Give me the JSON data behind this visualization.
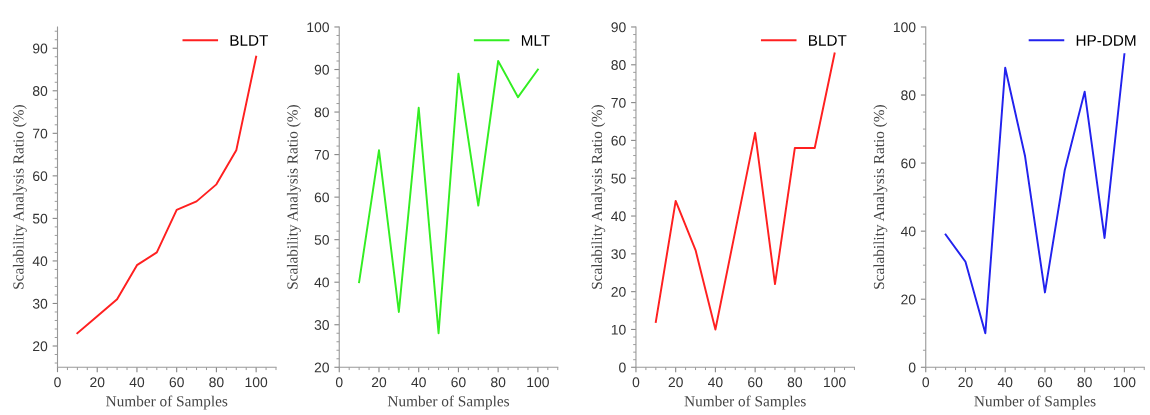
{
  "chart_data": [
    {
      "type": "line",
      "xlabel": "Number of Samples",
      "ylabel": "Scalability Analysis Ratio (%)",
      "x": [
        10,
        20,
        30,
        40,
        50,
        60,
        70,
        80,
        90,
        100
      ],
      "xlim": [
        0,
        110
      ],
      "xticks": [
        0,
        20,
        40,
        60,
        80,
        100
      ],
      "ylim": [
        15,
        95
      ],
      "yticks": [
        20,
        30,
        40,
        50,
        60,
        70,
        80,
        90
      ],
      "legend": "top right",
      "grid": false,
      "marker": "none",
      "line_style": "solid",
      "series": [
        {
          "name": "BLDT",
          "color": "#ff2020",
          "values": [
            23,
            27,
            31,
            39,
            42,
            52,
            54,
            58,
            66,
            88
          ]
        }
      ]
    },
    {
      "type": "line",
      "xlabel": "Number of Samples",
      "ylabel": "Scalability Analysis Ratio (%)",
      "x": [
        10,
        20,
        30,
        40,
        50,
        60,
        70,
        80,
        90,
        100
      ],
      "xlim": [
        0,
        110
      ],
      "xticks": [
        0,
        20,
        40,
        60,
        80,
        100
      ],
      "ylim": [
        20,
        100
      ],
      "yticks": [
        20,
        30,
        40,
        50,
        60,
        70,
        80,
        90,
        100
      ],
      "legend": "top right",
      "grid": false,
      "marker": "none",
      "line_style": "solid",
      "series": [
        {
          "name": "MLT",
          "color": "#33ee22",
          "values": [
            40,
            71,
            33,
            81,
            28,
            89,
            58,
            92,
            83.5,
            90
          ]
        }
      ]
    },
    {
      "type": "line",
      "xlabel": "Number of Samples",
      "ylabel": "Scalability Analysis Ratio (%)",
      "x": [
        10,
        20,
        30,
        40,
        50,
        60,
        70,
        80,
        90,
        100
      ],
      "xlim": [
        0,
        110
      ],
      "xticks": [
        0,
        20,
        40,
        60,
        80,
        100
      ],
      "ylim": [
        0,
        90
      ],
      "yticks": [
        0,
        10,
        20,
        30,
        40,
        50,
        60,
        70,
        80,
        90
      ],
      "legend": "top right",
      "grid": false,
      "marker": "none",
      "line_style": "solid",
      "series": [
        {
          "name": "BLDT",
          "color": "#ff2020",
          "values": [
            12,
            44,
            31,
            10,
            36,
            62,
            22,
            58,
            58,
            83
          ]
        }
      ]
    },
    {
      "type": "line",
      "xlabel": "Number of Samples",
      "ylabel": "Scalability Analysis Ratio (%)",
      "x": [
        10,
        20,
        30,
        40,
        50,
        60,
        70,
        80,
        90,
        100
      ],
      "xlim": [
        0,
        110
      ],
      "xticks": [
        0,
        20,
        40,
        60,
        80,
        100
      ],
      "ylim": [
        0,
        100
      ],
      "yticks": [
        0,
        20,
        40,
        60,
        80,
        100
      ],
      "legend": "top right",
      "grid": false,
      "marker": "none",
      "line_style": "solid",
      "series": [
        {
          "name": "HP-DDM",
          "color": "#2222ee",
          "values": [
            39,
            31,
            10,
            88,
            62,
            22,
            58,
            81,
            38,
            92
          ]
        }
      ]
    }
  ]
}
